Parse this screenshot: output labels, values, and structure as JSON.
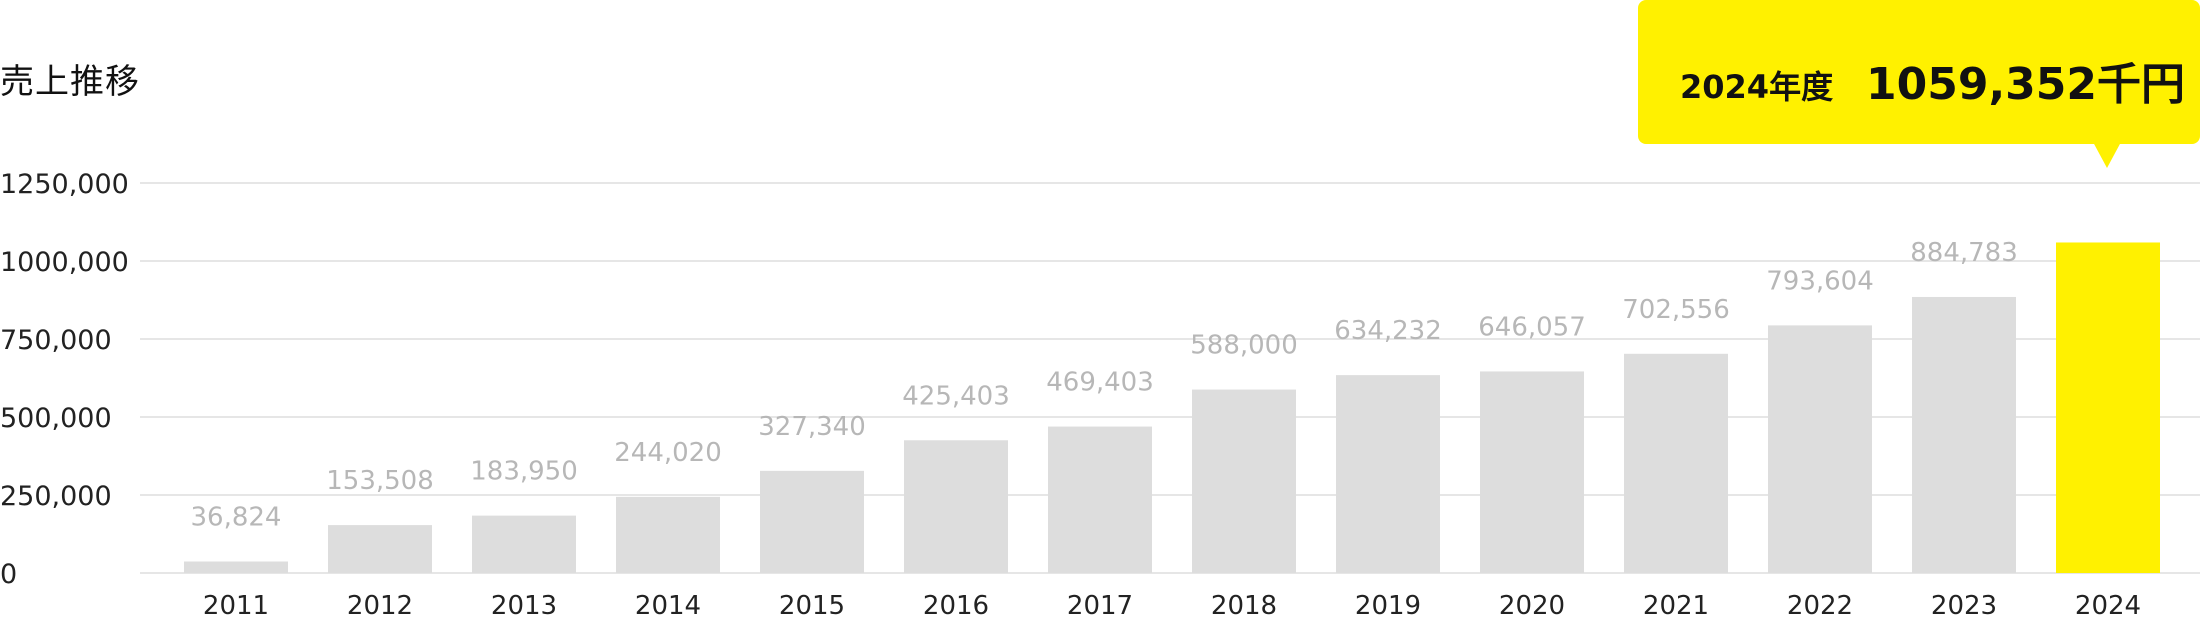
{
  "title": "売上推移",
  "callout": {
    "year_label": "2024年度",
    "value_label": "1059,352千円"
  },
  "colors": {
    "bar": "#dddddd",
    "highlight": "#fff100",
    "value_label": "#b7b7b7",
    "grid": "#e6e6e6",
    "axis_text": "#222222"
  },
  "chart_data": {
    "type": "bar",
    "categories": [
      "2011",
      "2012",
      "2013",
      "2014",
      "2015",
      "2016",
      "2017",
      "2018",
      "2019",
      "2020",
      "2021",
      "2022",
      "2023",
      "2024"
    ],
    "values": [
      36824,
      153508,
      183950,
      244020,
      327340,
      425403,
      469403,
      588000,
      634232,
      646057,
      702556,
      793604,
      884783,
      1059352
    ],
    "value_labels": [
      "36,824",
      "153,508",
      "183,950",
      "244,020",
      "327,340",
      "425,403",
      "469,403",
      "588,000",
      "634,232",
      "646,057",
      "702,556",
      "793,604",
      "884,783",
      ""
    ],
    "highlight_category": "2024",
    "yticks": [
      0,
      250000,
      500000,
      750000,
      1000000,
      1250000
    ],
    "ytick_labels": [
      "0",
      "250,000",
      "500,000",
      "750,000",
      "1000,000",
      "1250,000"
    ],
    "ylim": [
      0,
      1250000
    ],
    "grid": true,
    "title": "売上推移",
    "xlabel": "",
    "ylabel": ""
  }
}
